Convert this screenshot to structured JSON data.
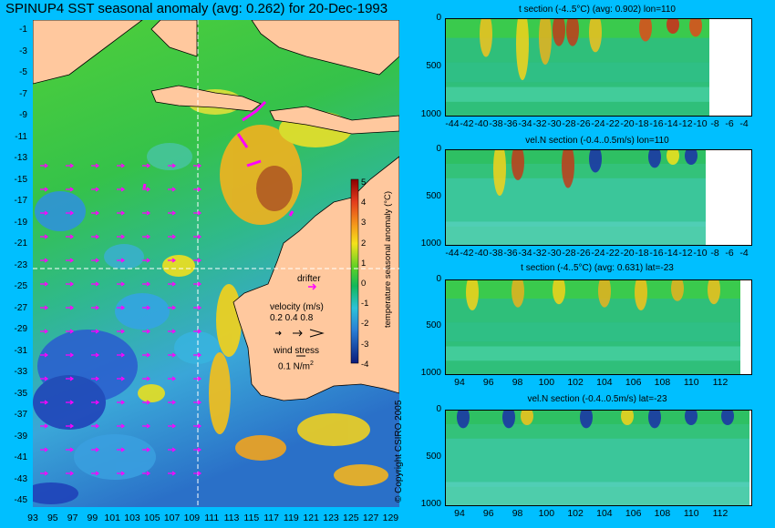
{
  "map": {
    "title": "SPINUP4 SST seasonal anomaly (avg: 0.262) for 20-Dec-1993",
    "lat_ticks": [
      "-1",
      "-3",
      "-5",
      "-7",
      "-9",
      "-11",
      "-13",
      "-15",
      "-17",
      "-19",
      "-21",
      "-23",
      "-25",
      "-27",
      "-29",
      "-31",
      "-33",
      "-35",
      "-37",
      "-39",
      "-41",
      "-43",
      "-45"
    ],
    "lon_ticks": [
      "93",
      "95",
      "97",
      "99",
      "101",
      "103",
      "105",
      "107",
      "109",
      "111",
      "113",
      "115",
      "117",
      "119",
      "121",
      "123",
      "125",
      "127",
      "129"
    ],
    "section_lines": {
      "lat": -23,
      "lon": 110
    },
    "colorbar": {
      "label": "temperature seasonal anomaly (°C)",
      "ticks": [
        "5",
        "4",
        "3",
        "2",
        "1",
        "0",
        "-1",
        "-2",
        "-3",
        "-4"
      ]
    },
    "legend": {
      "drifter": "drifter",
      "velocity_title": "velocity (m/s)",
      "velocity_values": "0.2 0.4 0.8",
      "wind_title": "wind stress",
      "wind_value": "0.1 N/m",
      "wind_exp": "2"
    },
    "colors": {
      "land": "#ffc89e",
      "ocean_mid": "#33c233",
      "ocean_warm": "#f5c21a",
      "ocean_cool": "#2da8e0",
      "ocean_cold": "#1e3fb8",
      "vectors": "#ff00ff"
    }
  },
  "copyright": "© Copyright CSIRO 2005",
  "sections": [
    {
      "title": "t section (-4..5°C) (avg: 0.902) lon=110",
      "type": "depth-lat",
      "x_ticks": [
        "-44",
        "-42",
        "-40",
        "-38",
        "-36",
        "-34",
        "-32",
        "-30",
        "-28",
        "-26",
        "-24",
        "-22",
        "-20",
        "-18",
        "-16",
        "-14",
        "-12",
        "-10",
        "-8",
        "-6",
        "-4"
      ],
      "y_ticks": [
        "0",
        "500",
        "1000"
      ]
    },
    {
      "title": "vel.N section (-0.4..0.5m/s) lon=110",
      "type": "depth-lat",
      "x_ticks": [
        "-44",
        "-42",
        "-40",
        "-38",
        "-36",
        "-34",
        "-32",
        "-30",
        "-28",
        "-26",
        "-24",
        "-22",
        "-20",
        "-18",
        "-16",
        "-14",
        "-12",
        "-10",
        "-8",
        "-6",
        "-4"
      ],
      "y_ticks": [
        "0",
        "500",
        "1000"
      ]
    },
    {
      "title": "t section (-4..5°C) (avg: 0.631) lat=-23",
      "type": "depth-lon",
      "x_ticks": [
        "94",
        "96",
        "98",
        "100",
        "102",
        "104",
        "106",
        "108",
        "110",
        "112"
      ],
      "y_ticks": [
        "0",
        "500",
        "1000"
      ]
    },
    {
      "title": "vel.N section (-0.4..0.5m/s) lat=-23",
      "type": "depth-lon",
      "x_ticks": [
        "94",
        "96",
        "98",
        "100",
        "102",
        "104",
        "106",
        "108",
        "110",
        "112"
      ],
      "y_ticks": [
        "0",
        "500",
        "1000"
      ]
    }
  ],
  "chart_data": [
    {
      "type": "heatmap",
      "title": "SPINUP4 SST seasonal anomaly (avg: 0.262) for 20-Dec-1993",
      "x_range": [
        93,
        130
      ],
      "y_range": [
        -45,
        0
      ],
      "color_range": [
        -4,
        5
      ],
      "colorbar_label": "temperature seasonal anomaly (°C)",
      "avg": 0.262
    },
    {
      "type": "heatmap",
      "title": "t section (-4..5°C) (avg: 0.902) lon=110",
      "x_range": [
        -45,
        -3
      ],
      "y_range": [
        1000,
        0
      ],
      "color_range": [
        -4,
        5
      ],
      "avg": 0.902
    },
    {
      "type": "heatmap",
      "title": "vel.N section (-0.4..0.5m/s) lon=110",
      "x_range": [
        -45,
        -3
      ],
      "y_range": [
        1000,
        0
      ],
      "color_range": [
        -0.4,
        0.5
      ]
    },
    {
      "type": "heatmap",
      "title": "t section (-4..5°C) (avg: 0.631) lat=-23",
      "x_range": [
        93,
        114
      ],
      "y_range": [
        1000,
        0
      ],
      "color_range": [
        -4,
        5
      ],
      "avg": 0.631
    },
    {
      "type": "heatmap",
      "title": "vel.N section (-0.4..0.5m/s) lat=-23",
      "x_range": [
        93,
        114
      ],
      "y_range": [
        1000,
        0
      ],
      "color_range": [
        -0.4,
        0.5
      ]
    }
  ]
}
